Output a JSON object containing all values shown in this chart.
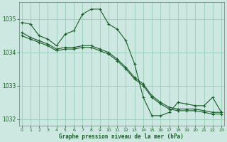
{
  "title": "Graphe pression niveau de la mer (hPa)",
  "background_color": "#cce8e0",
  "grid_color": "#99ccbb",
  "line_color": "#1a5c2a",
  "hours": [
    0,
    1,
    2,
    3,
    4,
    5,
    6,
    7,
    8,
    9,
    10,
    11,
    12,
    13,
    14,
    15,
    16,
    17,
    18,
    19,
    20,
    21,
    22,
    23
  ],
  "series1": [
    1034.9,
    1034.85,
    1034.5,
    1034.4,
    1034.2,
    1034.55,
    1034.65,
    1035.15,
    1035.3,
    1035.3,
    1034.85,
    1034.7,
    1034.35,
    1033.65,
    1032.65,
    1032.1,
    1032.1,
    1032.2,
    1032.5,
    1032.45,
    1032.4,
    1032.4,
    1032.65,
    1032.2
  ],
  "series2": [
    1034.6,
    1034.45,
    1034.35,
    1034.25,
    1034.1,
    1034.15,
    1034.15,
    1034.2,
    1034.2,
    1034.1,
    1034.0,
    1033.8,
    1033.55,
    1033.25,
    1033.05,
    1032.7,
    1032.5,
    1032.35,
    1032.3,
    1032.3,
    1032.3,
    1032.25,
    1032.2,
    1032.2
  ],
  "series3": [
    1034.5,
    1034.4,
    1034.3,
    1034.2,
    1034.05,
    1034.1,
    1034.1,
    1034.15,
    1034.15,
    1034.05,
    1033.95,
    1033.75,
    1033.5,
    1033.2,
    1033.0,
    1032.65,
    1032.45,
    1032.3,
    1032.25,
    1032.25,
    1032.25,
    1032.2,
    1032.15,
    1032.15
  ],
  "ylim": [
    1031.8,
    1035.5
  ],
  "yticks": [
    1032,
    1033,
    1034,
    1035
  ],
  "xlim": [
    -0.3,
    23.3
  ],
  "figwidth": 3.2,
  "figheight": 2.0,
  "dpi": 100
}
